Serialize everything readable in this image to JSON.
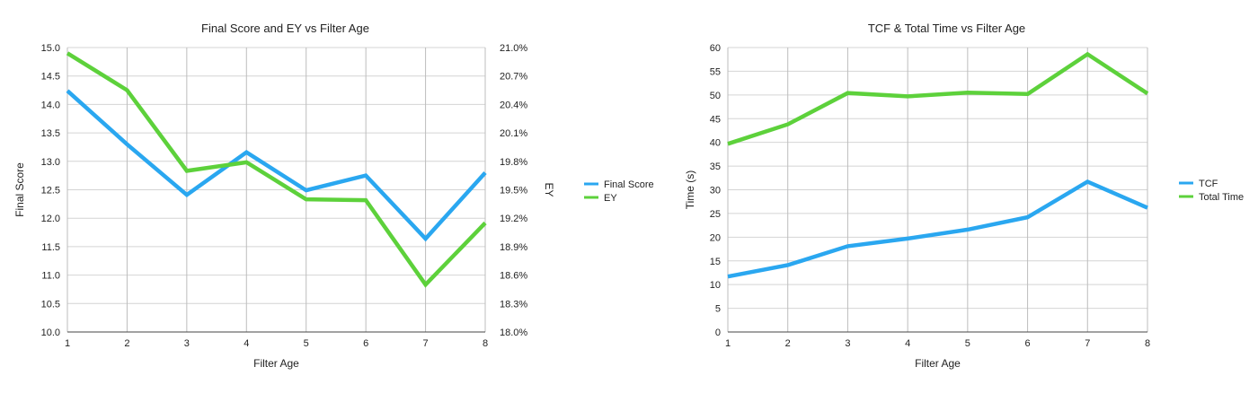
{
  "chart_data": [
    {
      "type": "line",
      "title": "Final Score and EY vs Filter Age",
      "xlabel": "Filter Age",
      "ylabel": "Final Score",
      "y2label": "EY",
      "x": [
        1,
        2,
        3,
        4,
        5,
        6,
        7,
        8
      ],
      "x_ticks": [
        "1",
        "2",
        "3",
        "4",
        "5",
        "6",
        "7",
        "8"
      ],
      "ylim": [
        10.0,
        15.0
      ],
      "y_ticks": [
        "10.0",
        "10.5",
        "11.0",
        "11.5",
        "12.0",
        "12.5",
        "13.0",
        "13.5",
        "14.0",
        "14.5",
        "15.0"
      ],
      "y2lim": [
        18.0,
        21.0
      ],
      "y2_ticks": [
        "18.0%",
        "18.3%",
        "18.6%",
        "18.9%",
        "19.2%",
        "19.5%",
        "19.8%",
        "20.1%",
        "20.4%",
        "20.7%",
        "21.0%"
      ],
      "grid": true,
      "legend_position": "right",
      "series": [
        {
          "name": "Final Score",
          "axis": "left",
          "color": "#2aa7f0",
          "values": [
            14.24,
            13.3,
            12.41,
            13.16,
            12.49,
            12.75,
            11.64,
            12.8
          ]
        },
        {
          "name": "EY",
          "axis": "right",
          "color": "#5dd13b",
          "values": [
            20.94,
            20.55,
            19.7,
            19.79,
            19.4,
            19.39,
            18.5,
            19.15
          ]
        }
      ]
    },
    {
      "type": "line",
      "title": "TCF & Total Time vs Filter Age",
      "xlabel": "Filter Age",
      "ylabel": "Time (s)",
      "x": [
        1,
        2,
        3,
        4,
        5,
        6,
        7,
        8
      ],
      "x_ticks": [
        "1",
        "2",
        "3",
        "4",
        "5",
        "6",
        "7",
        "8"
      ],
      "ylim": [
        0,
        60
      ],
      "y_ticks": [
        "0",
        "5",
        "10",
        "15",
        "20",
        "25",
        "30",
        "35",
        "40",
        "45",
        "50",
        "55",
        "60"
      ],
      "grid": true,
      "legend_position": "right",
      "series": [
        {
          "name": "TCF",
          "color": "#2aa7f0",
          "values": [
            11.7,
            14.1,
            18.1,
            19.7,
            21.6,
            24.2,
            31.7,
            26.2
          ]
        },
        {
          "name": "Total Time",
          "color": "#5dd13b",
          "values": [
            39.7,
            43.8,
            50.4,
            49.7,
            50.5,
            50.2,
            58.6,
            50.3
          ]
        }
      ]
    }
  ]
}
